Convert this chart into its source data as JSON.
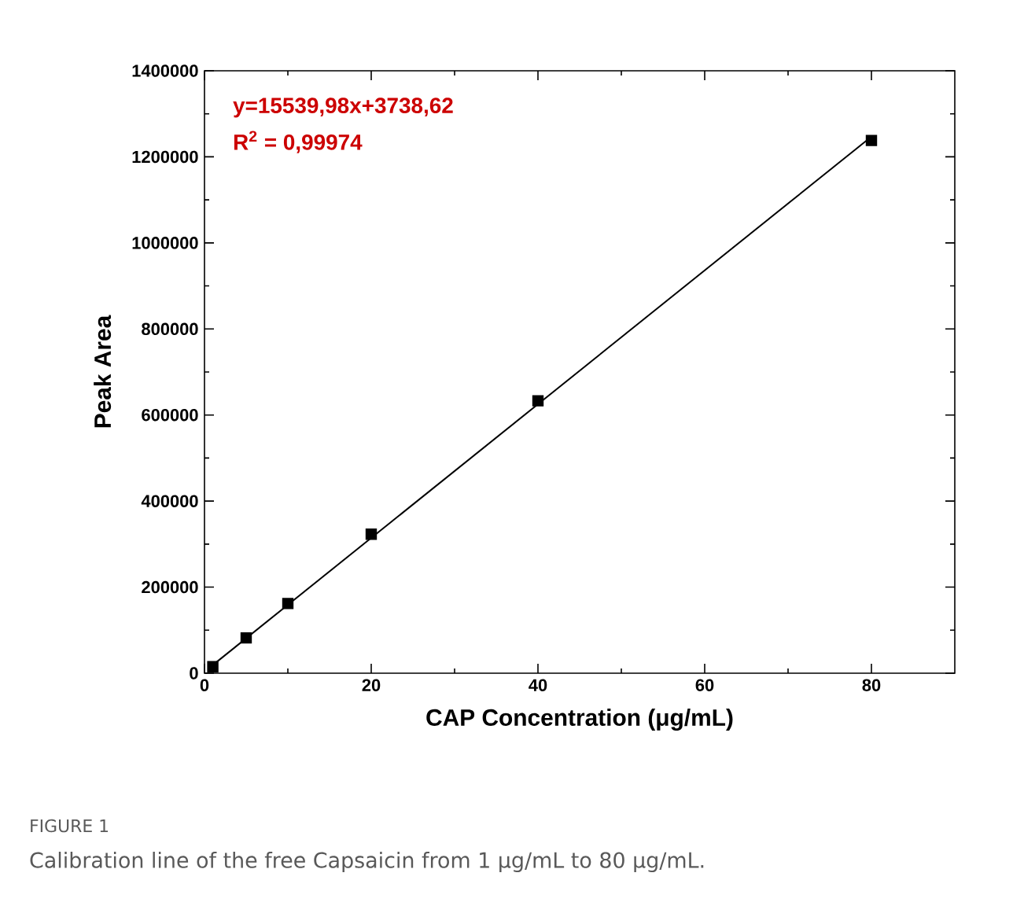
{
  "chart_data": {
    "type": "scatter",
    "xlabel": "CAP Concentration (μg/mL)",
    "ylabel": "Peak Area",
    "xlim": [
      0,
      90
    ],
    "ylim": [
      0,
      1400000
    ],
    "xticks": [
      0,
      20,
      40,
      60,
      80
    ],
    "yticks": [
      0,
      200000,
      400000,
      600000,
      800000,
      1000000,
      1200000,
      1400000
    ],
    "series": [
      {
        "type": "line",
        "color": "#000000",
        "x": [
          1,
          80
        ],
        "values": [
          19000,
          1247000
        ],
        "marker": "none"
      },
      {
        "color": "#000000",
        "x": [
          1,
          5,
          10,
          20,
          40,
          80
        ],
        "values": [
          15000,
          82000,
          162000,
          323000,
          633000,
          1238000
        ],
        "marker": "square"
      }
    ],
    "annotations": [
      "y=15539,98x+3738,62",
      "R$^{2}$ = 0,99974",
      "FIGURE 1",
      "Calibration line of the free Capsaicin from 1 μg/mL to 80 μg/mL."
    ],
    "grid": false
  }
}
